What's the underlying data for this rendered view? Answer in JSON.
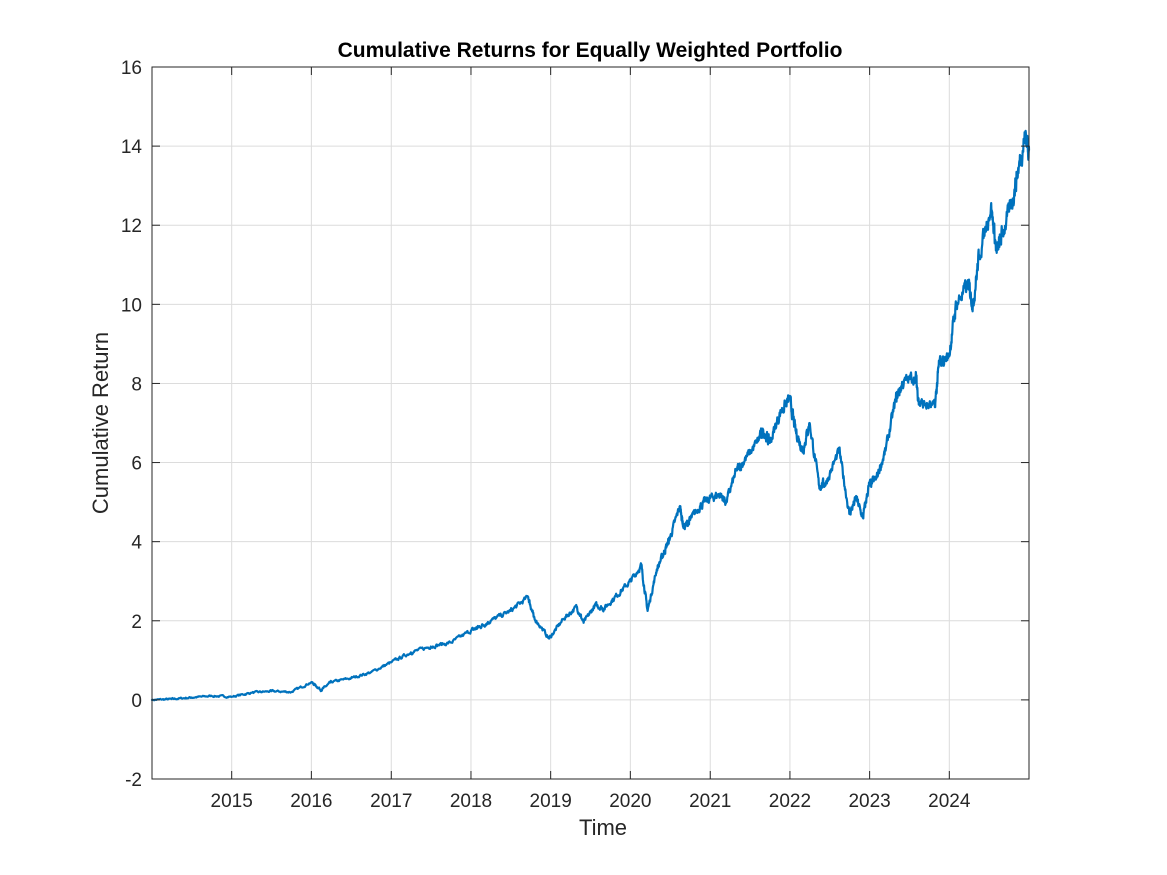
{
  "chart_data": {
    "type": "line",
    "title": "Cumulative Returns for Equally Weighted Portfolio",
    "xlabel": "Time",
    "ylabel": "Cumulative Return",
    "xlim": [
      "2014-01-01",
      "2024-12-31"
    ],
    "ylim": [
      -2,
      16
    ],
    "x_ticks": [
      "2015",
      "2016",
      "2017",
      "2018",
      "2019",
      "2020",
      "2021",
      "2022",
      "2023",
      "2024"
    ],
    "y_ticks": [
      "-2",
      "0",
      "2",
      "4",
      "6",
      "8",
      "10",
      "12",
      "14",
      "16"
    ],
    "grid": true,
    "legend": "none",
    "colors": {
      "line": "#0072BD",
      "grid": "#dcdcdc",
      "axis": "#262626"
    },
    "series": [
      {
        "x": [
          "2014-01-01",
          "2014-04-01",
          "2014-07-01",
          "2014-10-01",
          "2015-01-01",
          "2015-04-01",
          "2015-07-01",
          "2015-10-01",
          "2016-01-01",
          "2016-02-15",
          "2016-04-01",
          "2016-07-01",
          "2016-10-01",
          "2017-01-01",
          "2017-04-01",
          "2017-07-01",
          "2017-10-01",
          "2018-01-01",
          "2018-02-10",
          "2018-04-01",
          "2018-07-01",
          "2018-09-20",
          "2018-10-15",
          "2018-12-25",
          "2019-03-01",
          "2019-04-30",
          "2019-06-01",
          "2019-07-25",
          "2019-09-01",
          "2019-11-01",
          "2020-01-01",
          "2020-02-20",
          "2020-03-20",
          "2020-05-01",
          "2020-06-01",
          "2020-07-01",
          "2020-08-15",
          "2020-09-01",
          "2020-10-01",
          "2020-11-15",
          "2021-01-01",
          "2021-02-15",
          "2021-03-15",
          "2021-05-01",
          "2021-06-01",
          "2021-08-01",
          "2021-09-01",
          "2021-10-01",
          "2021-11-20",
          "2021-12-31",
          "2022-01-27",
          "2022-03-01",
          "2022-04-01",
          "2022-05-15",
          "2022-06-15",
          "2022-08-15",
          "2022-09-30",
          "2022-11-01",
          "2022-12-01",
          "2022-12-28",
          "2023-02-01",
          "2023-03-15",
          "2023-05-01",
          "2023-06-01",
          "2023-07-31",
          "2023-08-15",
          "2023-10-27",
          "2023-11-15",
          "2023-12-31",
          "2024-02-01",
          "2024-03-28",
          "2024-04-19",
          "2024-05-15",
          "2024-07-10",
          "2024-08-05",
          "2024-09-01",
          "2024-10-15",
          "2024-11-15",
          "2024-12-15",
          "2024-12-31"
        ],
        "y": [
          0,
          0.02,
          0.06,
          0.1,
          0.08,
          0.18,
          0.22,
          0.2,
          0.45,
          0.25,
          0.45,
          0.55,
          0.7,
          0.95,
          1.2,
          1.35,
          1.45,
          1.75,
          1.85,
          2.0,
          2.25,
          2.6,
          2.1,
          1.55,
          2.05,
          2.35,
          1.95,
          2.4,
          2.3,
          2.65,
          3.0,
          3.4,
          2.25,
          3.3,
          3.7,
          4.1,
          4.9,
          4.35,
          4.55,
          4.9,
          5.1,
          5.2,
          5.0,
          5.8,
          6.0,
          6.5,
          6.8,
          6.5,
          7.3,
          7.6,
          6.8,
          6.3,
          7.0,
          5.4,
          5.5,
          6.3,
          4.7,
          5.1,
          4.6,
          5.4,
          5.6,
          6.3,
          7.6,
          8.0,
          8.2,
          7.5,
          7.4,
          8.5,
          8.7,
          10.0,
          10.5,
          10.0,
          11.2,
          12.5,
          11.3,
          11.8,
          12.6,
          13.5,
          14.3,
          13.9
        ]
      }
    ]
  }
}
